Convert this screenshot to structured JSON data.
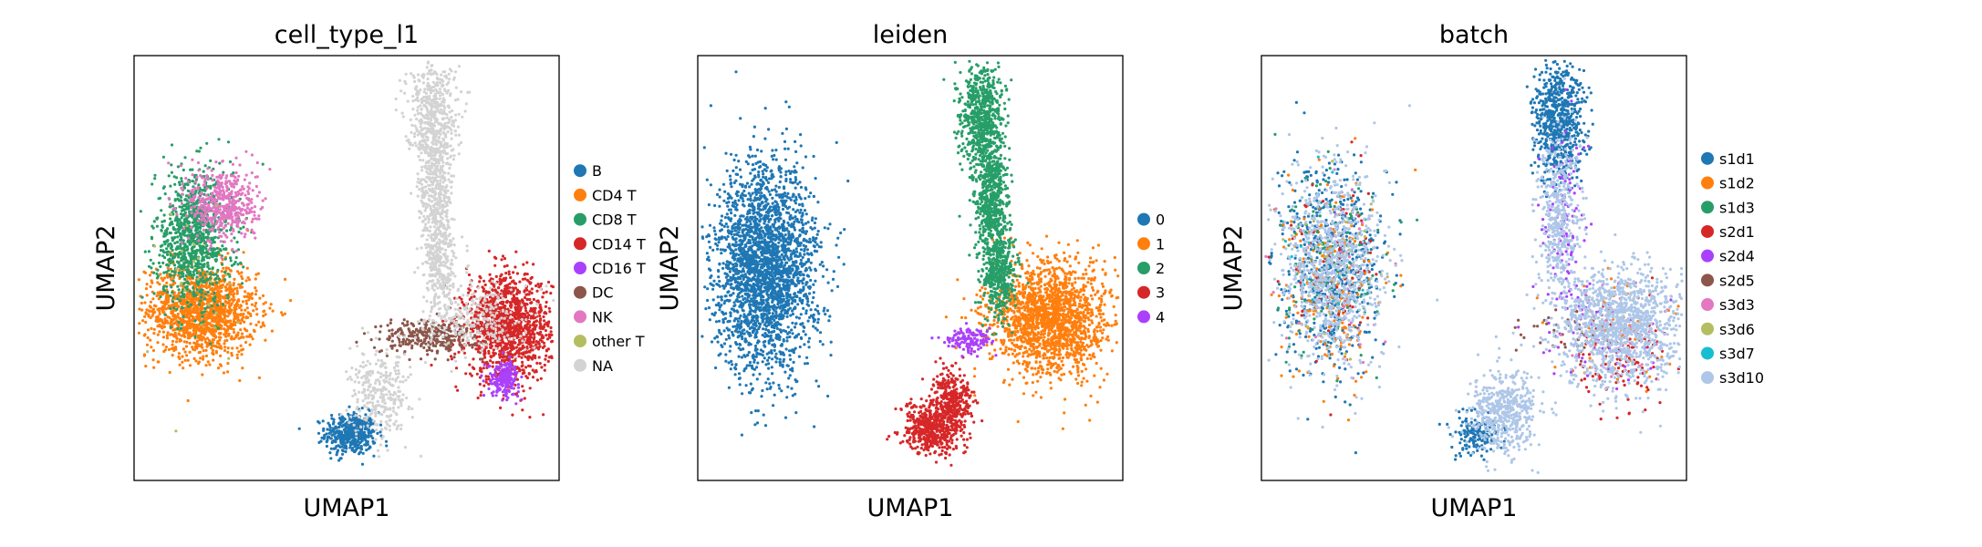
{
  "chart_data": [
    {
      "type": "scatter",
      "title": "cell_type_l1",
      "xlabel": "UMAP1",
      "ylabel": "UMAP2",
      "xlim": [
        0,
        100
      ],
      "ylim": [
        0,
        100
      ],
      "grid": false,
      "legend_position": "right",
      "series": [
        {
          "name": "B",
          "color": "#1f77b4",
          "clusters": [
            {
              "cx": 51,
              "cy": 11,
              "sx": 3.0,
              "sy": 2.5,
              "n": 450
            }
          ]
        },
        {
          "name": "CD4 T",
          "color": "#ff7f0e",
          "clusters": [
            {
              "cx": 16,
              "cy": 40,
              "sx": 6.5,
              "sy": 5.5,
              "n": 1400
            }
          ]
        },
        {
          "name": "CD8 T",
          "color": "#279e68",
          "clusters": [
            {
              "cx": 14,
              "cy": 57,
              "sx": 4.5,
              "sy": 8.0,
              "n": 1000
            }
          ]
        },
        {
          "name": "CD14 T",
          "color": "#d62728",
          "clusters": [
            {
              "cx": 88,
              "cy": 36,
              "sx": 5.0,
              "sy": 6.0,
              "n": 1300
            }
          ]
        },
        {
          "name": "CD16 T",
          "color": "#aa40fc",
          "clusters": [
            {
              "cx": 87,
              "cy": 24,
              "sx": 1.8,
              "sy": 2.0,
              "n": 200
            }
          ]
        },
        {
          "name": "DC",
          "color": "#8c564b",
          "clusters": [
            {
              "cx": 70,
              "cy": 34,
              "sx": 6.0,
              "sy": 2.0,
              "n": 320
            }
          ]
        },
        {
          "name": "NK",
          "color": "#e377c2",
          "clusters": [
            {
              "cx": 21,
              "cy": 65,
              "sx": 4.0,
              "sy": 4.5,
              "n": 480
            }
          ]
        },
        {
          "name": "other T",
          "color": "#b5bd61",
          "clusters": [
            {
              "cx": 14,
              "cy": 47,
              "sx": 6.0,
              "sy": 10.0,
              "n": 25
            }
          ]
        },
        {
          "name": "NA",
          "color": "#d3d3d3",
          "clusters": [
            {
              "cx": 70,
              "cy": 87,
              "sx": 3.0,
              "sy": 6.0,
              "n": 450
            },
            {
              "cx": 71,
              "cy": 69,
              "sx": 2.0,
              "sy": 8.0,
              "n": 420
            },
            {
              "cx": 72,
              "cy": 51,
              "sx": 2.0,
              "sy": 6.0,
              "n": 320
            },
            {
              "cx": 58,
              "cy": 20,
              "sx": 3.5,
              "sy": 5.0,
              "n": 300
            },
            {
              "cx": 80,
              "cy": 38,
              "sx": 6.0,
              "sy": 4.0,
              "n": 250
            }
          ]
        }
      ]
    },
    {
      "type": "scatter",
      "title": "leiden",
      "xlabel": "UMAP1",
      "ylabel": "UMAP2",
      "xlim": [
        0,
        100
      ],
      "ylim": [
        0,
        100
      ],
      "grid": false,
      "legend_position": "right",
      "series": [
        {
          "name": "0",
          "color": "#1f77b4",
          "clusters": [
            {
              "cx": 16,
              "cy": 50,
              "sx": 6.0,
              "sy": 12.0,
              "n": 2600
            }
          ]
        },
        {
          "name": "1",
          "color": "#ff7f0e",
          "clusters": [
            {
              "cx": 83,
              "cy": 38,
              "sx": 7.0,
              "sy": 6.5,
              "n": 1800
            }
          ]
        },
        {
          "name": "2",
          "color": "#279e68",
          "clusters": [
            {
              "cx": 67,
              "cy": 86,
              "sx": 2.5,
              "sy": 6.0,
              "n": 650
            },
            {
              "cx": 69,
              "cy": 65,
              "sx": 2.0,
              "sy": 8.0,
              "n": 650
            },
            {
              "cx": 71,
              "cy": 48,
              "sx": 2.0,
              "sy": 5.0,
              "n": 400
            }
          ]
        },
        {
          "name": "3",
          "color": "#d62728",
          "clusters": [
            {
              "cx": 55,
              "cy": 12,
              "sx": 3.5,
              "sy": 2.8,
              "n": 500
            },
            {
              "cx": 60,
              "cy": 19,
              "sx": 2.5,
              "sy": 3.5,
              "n": 350
            }
          ]
        },
        {
          "name": "4",
          "color": "#aa40fc",
          "clusters": [
            {
              "cx": 64,
              "cy": 33,
              "sx": 2.5,
              "sy": 1.3,
              "n": 130
            }
          ]
        }
      ]
    },
    {
      "type": "scatter",
      "title": "batch",
      "xlabel": "UMAP1",
      "ylabel": "UMAP2",
      "xlim": [
        0,
        100
      ],
      "ylim": [
        0,
        100
      ],
      "grid": false,
      "legend_position": "right",
      "series": [
        {
          "name": "s1d1",
          "color": "#1f77b4",
          "clusters": [
            {
              "cx": 16,
              "cy": 50,
              "sx": 6.0,
              "sy": 12.0,
              "n": 600
            },
            {
              "cx": 70,
              "cy": 85,
              "sx": 3.0,
              "sy": 7.0,
              "n": 700
            },
            {
              "cx": 51,
              "cy": 11,
              "sx": 3.0,
              "sy": 2.5,
              "n": 150
            }
          ]
        },
        {
          "name": "s1d2",
          "color": "#ff7f0e",
          "clusters": [
            {
              "cx": 16,
              "cy": 47,
              "sx": 6.0,
              "sy": 11.0,
              "n": 220
            },
            {
              "cx": 82,
              "cy": 33,
              "sx": 7.0,
              "sy": 7.0,
              "n": 60
            }
          ]
        },
        {
          "name": "s1d3",
          "color": "#279e68",
          "clusters": [
            {
              "cx": 16,
              "cy": 52,
              "sx": 6.0,
              "sy": 11.0,
              "n": 140
            }
          ]
        },
        {
          "name": "s2d1",
          "color": "#d62728",
          "clusters": [
            {
              "cx": 16,
              "cy": 50,
              "sx": 6.0,
              "sy": 12.0,
              "n": 90
            },
            {
              "cx": 84,
              "cy": 30,
              "sx": 6.0,
              "sy": 7.0,
              "n": 130
            }
          ]
        },
        {
          "name": "s2d4",
          "color": "#aa40fc",
          "clusters": [
            {
              "cx": 72,
              "cy": 60,
              "sx": 3.0,
              "sy": 12.0,
              "n": 120
            },
            {
              "cx": 80,
              "cy": 34,
              "sx": 7.0,
              "sy": 6.0,
              "n": 60
            }
          ]
        },
        {
          "name": "s2d5",
          "color": "#8c564b",
          "clusters": [
            {
              "cx": 70,
              "cy": 35,
              "sx": 6.0,
              "sy": 3.0,
              "n": 40
            }
          ]
        },
        {
          "name": "s3d3",
          "color": "#e377c2",
          "clusters": [
            {
              "cx": 16,
              "cy": 50,
              "sx": 6.0,
              "sy": 12.0,
              "n": 40
            },
            {
              "cx": 84,
              "cy": 34,
              "sx": 6.0,
              "sy": 6.0,
              "n": 30
            }
          ]
        },
        {
          "name": "s3d6",
          "color": "#b5bd61",
          "clusters": [
            {
              "cx": 16,
              "cy": 50,
              "sx": 6.0,
              "sy": 12.0,
              "n": 30
            }
          ]
        },
        {
          "name": "s3d7",
          "color": "#17becf",
          "clusters": [
            {
              "cx": 16,
              "cy": 50,
              "sx": 6.0,
              "sy": 12.0,
              "n": 20
            }
          ]
        },
        {
          "name": "s3d10",
          "color": "#aec7e8",
          "clusters": [
            {
              "cx": 16,
              "cy": 50,
              "sx": 6.0,
              "sy": 12.0,
              "n": 900
            },
            {
              "cx": 84,
              "cy": 36,
              "sx": 7.0,
              "sy": 7.0,
              "n": 1300
            },
            {
              "cx": 70,
              "cy": 62,
              "sx": 2.5,
              "sy": 10.0,
              "n": 450
            },
            {
              "cx": 57,
              "cy": 16,
              "sx": 4.0,
              "sy": 5.0,
              "n": 500
            }
          ]
        }
      ]
    }
  ]
}
